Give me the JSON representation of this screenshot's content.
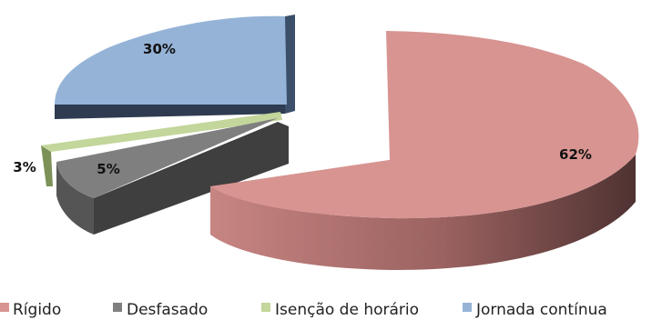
{
  "chart_data": {
    "type": "pie",
    "title": "",
    "series": [
      {
        "name": "Rígido",
        "value": 62,
        "label": "62%",
        "color": "#d89491"
      },
      {
        "name": "Desfasado",
        "value": 5,
        "label": "5%",
        "color": "#7f7f7f"
      },
      {
        "name": "Isenção de horário",
        "value": 3,
        "label": "3%",
        "color": "#c3d69b"
      },
      {
        "name": "Jornada contínua",
        "value": 30,
        "label": "30%",
        "color": "#95b3d7"
      }
    ],
    "legend_position": "bottom",
    "style": "3d-exploded"
  }
}
